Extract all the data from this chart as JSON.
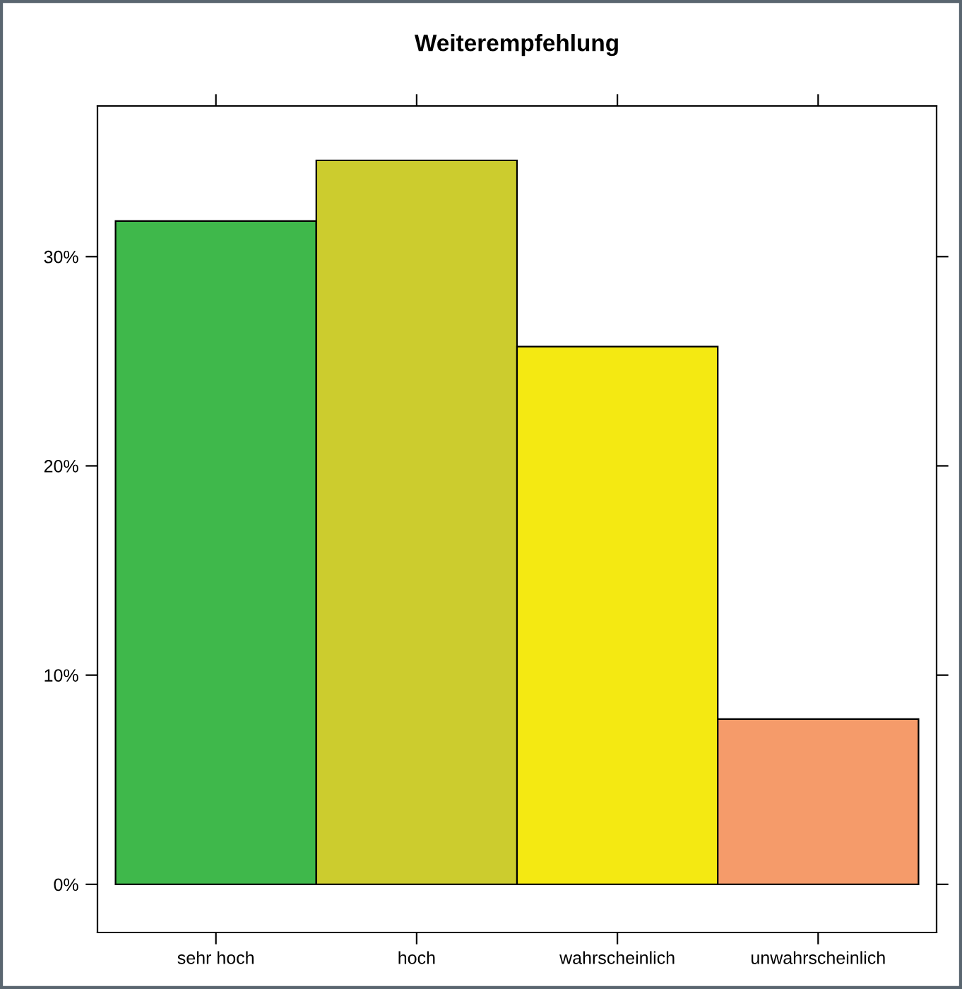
{
  "chart_data": {
    "type": "bar",
    "title": "Weiterempfehlung",
    "categories": [
      "sehr hoch",
      "hoch",
      "wahrscheinlich",
      "unwahrscheinlich"
    ],
    "values": [
      31.7,
      34.6,
      25.7,
      7.9
    ],
    "colors": [
      "#3fb84b",
      "#cccc2e",
      "#f4e912",
      "#f59b6a"
    ],
    "ylim": [
      -2.3,
      37.2
    ],
    "yticks": [
      {
        "value": 0,
        "label": "0%"
      },
      {
        "value": 10,
        "label": "10%"
      },
      {
        "value": 20,
        "label": "20%"
      },
      {
        "value": 30,
        "label": "30%"
      }
    ],
    "grid": false
  }
}
